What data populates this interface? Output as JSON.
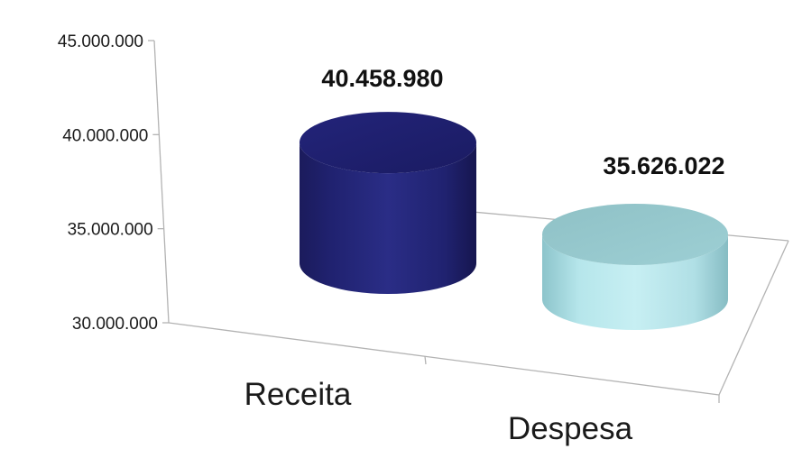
{
  "chart_data": {
    "type": "bar",
    "style": "3d-cylinder",
    "categories": [
      "Receita",
      "Despesa"
    ],
    "values": [
      40458980,
      35626022
    ],
    "value_labels": [
      "40.458.980",
      "35.626.022"
    ],
    "ylim": [
      30000000,
      45000000
    ],
    "y_ticks": [
      {
        "value": 30000000,
        "label": "30.000.000"
      },
      {
        "value": 35000000,
        "label": "35.000.000"
      },
      {
        "value": 40000000,
        "label": "40.000.000"
      },
      {
        "value": 45000000,
        "label": "45.000.000"
      }
    ],
    "colors": [
      "#1e1f6b",
      "#a9e0e6"
    ],
    "grid": false,
    "legend": "none",
    "title": "",
    "xlabel": "",
    "ylabel": ""
  }
}
